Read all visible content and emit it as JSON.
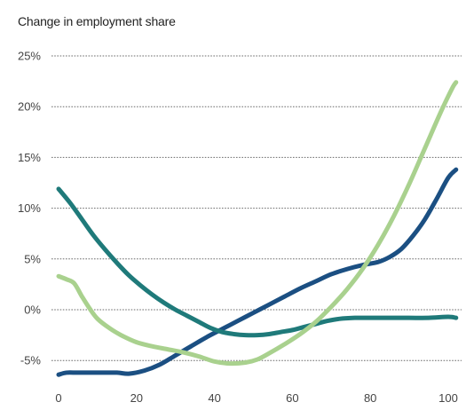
{
  "chart_data": {
    "type": "line",
    "title": "Change in employment share",
    "xlabel": "",
    "ylabel": "",
    "xlim": [
      0,
      100
    ],
    "ylim": [
      -6,
      25
    ],
    "xticks": [
      0,
      20,
      40,
      60,
      80,
      100
    ],
    "xtick_labels": [
      "0",
      "20",
      "40",
      "60",
      "80",
      "100"
    ],
    "yticks": [
      25,
      20,
      15,
      10,
      5,
      0,
      -5
    ],
    "ytick_labels": [
      "25%",
      "20%",
      "15%",
      "10%",
      "5%",
      "0%",
      "-5%"
    ],
    "grid": true,
    "legend": "none",
    "series": [
      {
        "color": "#1b4f82",
        "points": [
          [
            0,
            -6.4
          ],
          [
            2,
            -6.2
          ],
          [
            5,
            -6.2
          ],
          [
            10,
            -6.2
          ],
          [
            15,
            -6.2
          ],
          [
            18,
            -6.3
          ],
          [
            22,
            -6.0
          ],
          [
            26,
            -5.4
          ],
          [
            30,
            -4.5
          ],
          [
            34,
            -3.6
          ],
          [
            38,
            -2.7
          ],
          [
            42,
            -1.9
          ],
          [
            46,
            -1.1
          ],
          [
            50,
            -0.3
          ],
          [
            54,
            0.5
          ],
          [
            58,
            1.3
          ],
          [
            62,
            2.1
          ],
          [
            66,
            2.8
          ],
          [
            70,
            3.5
          ],
          [
            74,
            4.0
          ],
          [
            78,
            4.4
          ],
          [
            82,
            4.7
          ],
          [
            85,
            5.2
          ],
          [
            88,
            6.0
          ],
          [
            91,
            7.3
          ],
          [
            94,
            8.9
          ],
          [
            97,
            10.9
          ],
          [
            100,
            13.0
          ],
          [
            102,
            13.8
          ]
        ]
      },
      {
        "color": "#1f7a7a",
        "points": [
          [
            0,
            11.9
          ],
          [
            3,
            10.5
          ],
          [
            6,
            8.9
          ],
          [
            9,
            7.3
          ],
          [
            12,
            5.9
          ],
          [
            15,
            4.6
          ],
          [
            18,
            3.4
          ],
          [
            21,
            2.4
          ],
          [
            24,
            1.5
          ],
          [
            27,
            0.7
          ],
          [
            30,
            0.0
          ],
          [
            33,
            -0.6
          ],
          [
            36,
            -1.2
          ],
          [
            39,
            -1.8
          ],
          [
            42,
            -2.2
          ],
          [
            45,
            -2.4
          ],
          [
            48,
            -2.5
          ],
          [
            51,
            -2.5
          ],
          [
            54,
            -2.4
          ],
          [
            57,
            -2.2
          ],
          [
            60,
            -2.0
          ],
          [
            63,
            -1.7
          ],
          [
            66,
            -1.4
          ],
          [
            69,
            -1.1
          ],
          [
            72,
            -0.9
          ],
          [
            76,
            -0.8
          ],
          [
            80,
            -0.8
          ],
          [
            85,
            -0.8
          ],
          [
            90,
            -0.8
          ],
          [
            95,
            -0.8
          ],
          [
            100,
            -0.7
          ],
          [
            102,
            -0.8
          ]
        ]
      },
      {
        "color": "#a9d18e",
        "points": [
          [
            0,
            3.3
          ],
          [
            2,
            3.0
          ],
          [
            4,
            2.6
          ],
          [
            6,
            1.3
          ],
          [
            8,
            0.1
          ],
          [
            10,
            -0.9
          ],
          [
            13,
            -1.8
          ],
          [
            16,
            -2.5
          ],
          [
            20,
            -3.2
          ],
          [
            24,
            -3.6
          ],
          [
            28,
            -3.9
          ],
          [
            32,
            -4.2
          ],
          [
            36,
            -4.6
          ],
          [
            40,
            -5.1
          ],
          [
            44,
            -5.3
          ],
          [
            48,
            -5.2
          ],
          [
            51,
            -4.9
          ],
          [
            54,
            -4.3
          ],
          [
            58,
            -3.4
          ],
          [
            62,
            -2.4
          ],
          [
            66,
            -1.2
          ],
          [
            70,
            0.3
          ],
          [
            74,
            2.0
          ],
          [
            78,
            4.0
          ],
          [
            82,
            6.4
          ],
          [
            86,
            9.2
          ],
          [
            90,
            12.4
          ],
          [
            94,
            15.9
          ],
          [
            98,
            19.4
          ],
          [
            101,
            21.8
          ],
          [
            102,
            22.4
          ]
        ]
      }
    ]
  }
}
